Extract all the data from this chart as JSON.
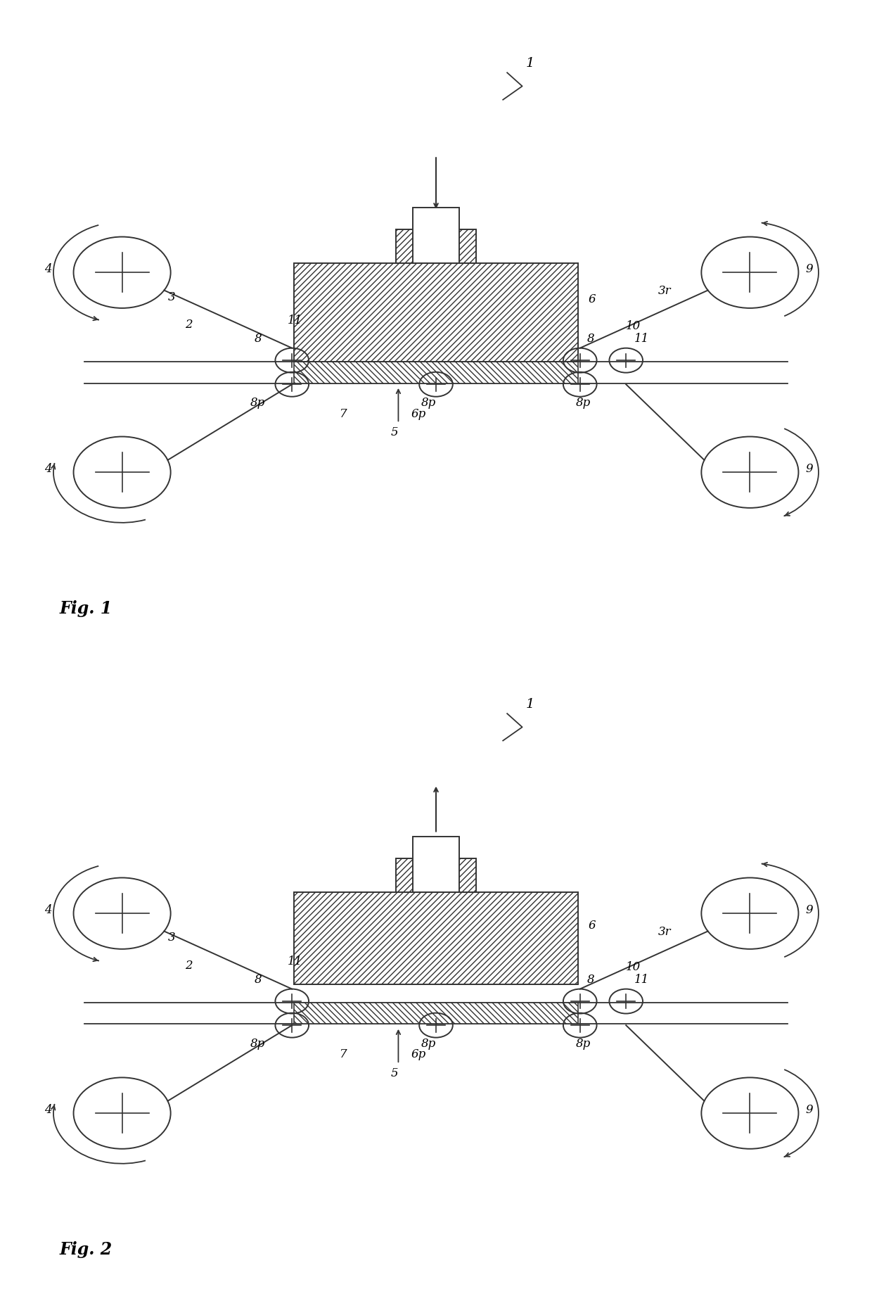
{
  "fig_width": 12.4,
  "fig_height": 18.59,
  "bg_color": "#ffffff",
  "line_color": "#333333",
  "fig1_label": "Fig. 1",
  "fig2_label": "Fig. 2",
  "label1": "1",
  "label2": "2",
  "label3": "3",
  "label3r": "3r",
  "label4": "4",
  "label5": "5",
  "label6": "6",
  "label6p": "6p",
  "label7": "7",
  "label8": "8",
  "label8p": "8p",
  "label9": "9",
  "label10": "10",
  "label11": "11"
}
